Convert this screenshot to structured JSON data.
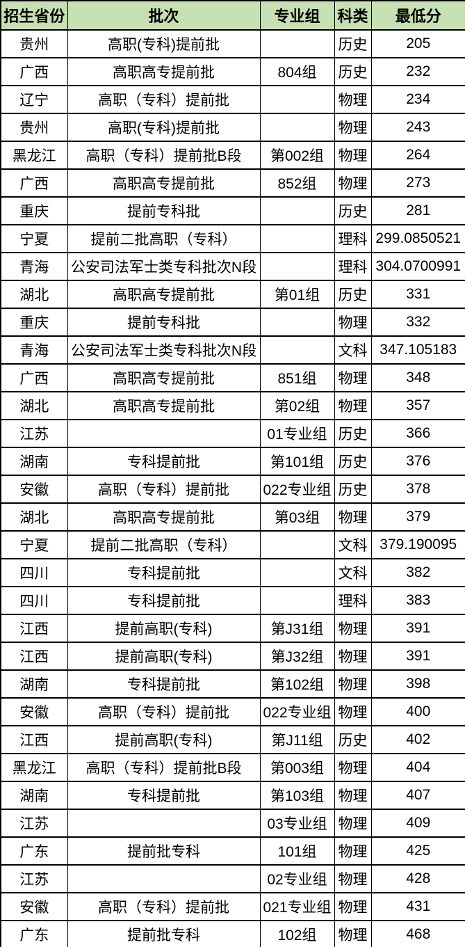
{
  "table": {
    "header_bg_color": "#C6E0B4",
    "border_color": "#000000",
    "headers": [
      "招生省份",
      "批次",
      "专业组",
      "科类",
      "最低分"
    ],
    "rows": [
      {
        "province": "贵州",
        "batch": "高职(专科)提前批",
        "group": "",
        "category": "历史",
        "min_score": "205"
      },
      {
        "province": "广西",
        "batch": "高职高专提前批",
        "group": "804组",
        "category": "历史",
        "min_score": "232"
      },
      {
        "province": "辽宁",
        "batch": "高职（专科）提前批",
        "group": "",
        "category": "物理",
        "min_score": "234"
      },
      {
        "province": "贵州",
        "batch": "高职(专科)提前批",
        "group": "",
        "category": "物理",
        "min_score": "243"
      },
      {
        "province": "黑龙江",
        "batch": "高职（专科）提前批B段",
        "group": "第002组",
        "category": "物理",
        "min_score": "264"
      },
      {
        "province": "广西",
        "batch": "高职高专提前批",
        "group": "852组",
        "category": "物理",
        "min_score": "273"
      },
      {
        "province": "重庆",
        "batch": "提前专科批",
        "group": "",
        "category": "历史",
        "min_score": "281"
      },
      {
        "province": "宁夏",
        "batch": "提前二批高职（专科）",
        "group": "",
        "category": "理科",
        "min_score": "299.0850521"
      },
      {
        "province": "青海",
        "batch": "公安司法军士类专科批次N段",
        "group": "",
        "category": "理科",
        "min_score": "304.0700991"
      },
      {
        "province": "湖北",
        "batch": "高职高专提前批",
        "group": "第01组",
        "category": "历史",
        "min_score": "331"
      },
      {
        "province": "重庆",
        "batch": "提前专科批",
        "group": "",
        "category": "物理",
        "min_score": "332"
      },
      {
        "province": "青海",
        "batch": "公安司法军士类专科批次N段",
        "group": "",
        "category": "文科",
        "min_score": "347.105183"
      },
      {
        "province": "广西",
        "batch": "高职高专提前批",
        "group": "851组",
        "category": "物理",
        "min_score": "348"
      },
      {
        "province": "湖北",
        "batch": "高职高专提前批",
        "group": "第02组",
        "category": "物理",
        "min_score": "357"
      },
      {
        "province": "江苏",
        "batch": "",
        "group": "01专业组",
        "category": "历史",
        "min_score": "366"
      },
      {
        "province": "湖南",
        "batch": "专科提前批",
        "group": "第101组",
        "category": "历史",
        "min_score": "376"
      },
      {
        "province": "安徽",
        "batch": "高职（专科）提前批",
        "group": "022专业组",
        "category": "历史",
        "min_score": "378"
      },
      {
        "province": "湖北",
        "batch": "高职高专提前批",
        "group": "第03组",
        "category": "物理",
        "min_score": "379"
      },
      {
        "province": "宁夏",
        "batch": "提前二批高职（专科）",
        "group": "",
        "category": "文科",
        "min_score": "379.190095"
      },
      {
        "province": "四川",
        "batch": "专科提前批",
        "group": "",
        "category": "文科",
        "min_score": "382"
      },
      {
        "province": "四川",
        "batch": "专科提前批",
        "group": "",
        "category": "理科",
        "min_score": "383"
      },
      {
        "province": "江西",
        "batch": "提前高职(专科)",
        "group": "第J31组",
        "category": "物理",
        "min_score": "391"
      },
      {
        "province": "江西",
        "batch": "提前高职(专科)",
        "group": "第J32组",
        "category": "物理",
        "min_score": "391"
      },
      {
        "province": "湖南",
        "batch": "专科提前批",
        "group": "第102组",
        "category": "物理",
        "min_score": "398"
      },
      {
        "province": "安徽",
        "batch": "高职（专科）提前批",
        "group": "022专业组",
        "category": "物理",
        "min_score": "400"
      },
      {
        "province": "江西",
        "batch": "提前高职(专科)",
        "group": "第J11组",
        "category": "历史",
        "min_score": "402"
      },
      {
        "province": "黑龙江",
        "batch": "高职（专科）提前批B段",
        "group": "第003组",
        "category": "物理",
        "min_score": "404"
      },
      {
        "province": "湖南",
        "batch": "专科提前批",
        "group": "第103组",
        "category": "物理",
        "min_score": "407"
      },
      {
        "province": "江苏",
        "batch": "",
        "group": "03专业组",
        "category": "物理",
        "min_score": "409"
      },
      {
        "province": "广东",
        "batch": "提前批专科",
        "group": "101组",
        "category": "物理",
        "min_score": "425"
      },
      {
        "province": "江苏",
        "batch": "",
        "group": "02专业组",
        "category": "物理",
        "min_score": "428"
      },
      {
        "province": "安徽",
        "batch": "高职（专科）提前批",
        "group": "021专业组",
        "category": "物理",
        "min_score": "431"
      },
      {
        "province": "广东",
        "batch": "提前批专科",
        "group": "102组",
        "category": "物理",
        "min_score": "468"
      }
    ]
  }
}
